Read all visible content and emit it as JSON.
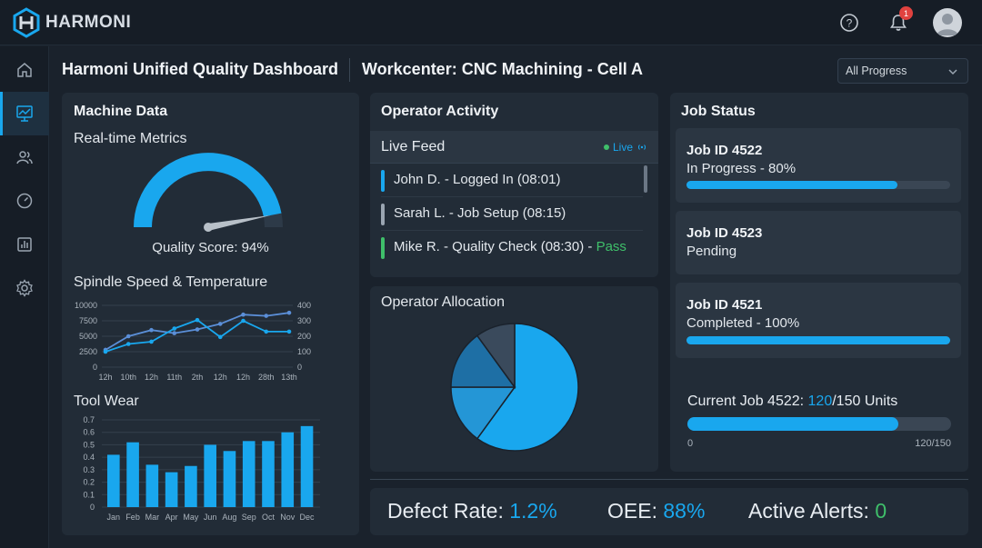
{
  "app": {
    "name": "HARMONI"
  },
  "topbar": {
    "notifications_count": "1"
  },
  "header": {
    "title": "Harmoni Unified Quality Dashboard",
    "workcenter": "Workcenter: CNC Machining - Cell A",
    "filter_value": "All Progress"
  },
  "sidebar": {
    "items": [
      "home-icon",
      "dashboard-icon",
      "users-icon",
      "gauge-icon",
      "reports-icon",
      "settings-icon"
    ],
    "active_index": 1
  },
  "machine": {
    "title": "Machine Data",
    "realtime_title": "Real-time Metrics",
    "quality_label": "Quality Score: 94%",
    "quality_value": 94,
    "spindle_title": "Spindle Speed & Temperature",
    "toolwear_title": "Tool Wear"
  },
  "operator": {
    "title": "Operator Activity",
    "feed_title": "Live Feed",
    "live_label": "Live",
    "feed": [
      {
        "text": "John D. - Logged In (08:01)",
        "suffix": "",
        "color": "#19a7ee"
      },
      {
        "text": "Sarah L. - Job Setup (08:15)",
        "suffix": "",
        "color": "#9aa5b1"
      },
      {
        "text": "Mike R. - Quality Check (08:30) - ",
        "suffix": "Pass",
        "color": "#3fbf6a"
      }
    ],
    "allocation_title": "Operator Allocation"
  },
  "jobs": {
    "title": "Job Status",
    "items": [
      {
        "id": "Job ID 4522",
        "status": "In Progress - 80%",
        "progress": 0.8
      },
      {
        "id": "Job ID 4523",
        "status": "Pending",
        "progress": null
      },
      {
        "id": "Job ID 4521",
        "status": "Completed - 100%",
        "progress": 1.0
      }
    ],
    "current_prefix": "Current Job 4522: ",
    "current_done": "120",
    "current_total": "/150 Units",
    "current_progress": 0.8,
    "axis_start": "0",
    "axis_end": "120/150"
  },
  "metrics": {
    "defect_label": "Defect Rate: ",
    "defect_value": "1.2%",
    "oee_label": "OEE: ",
    "oee_value": "88%",
    "alerts_label": "Active Alerts: ",
    "alerts_value": "0"
  },
  "colors": {
    "accent": "#19a7ee",
    "pass": "#3fbf6a",
    "alert_badge": "#e0423f"
  },
  "chart_data": [
    {
      "type": "line",
      "title": "Spindle Speed & Temperature",
      "categories": [
        "12h",
        "10th",
        "12h",
        "11th",
        "2th",
        "12h",
        "12h",
        "28th",
        "13th"
      ],
      "y_left_ticks": [
        "10000",
        "7500",
        "5000",
        "2500",
        "0"
      ],
      "y_right_ticks": [
        "400",
        "300",
        "200",
        "100",
        "0"
      ],
      "ylim_left": [
        0,
        10000
      ],
      "ylim_right": [
        0,
        400
      ],
      "series": [
        {
          "values": [
            2800,
            5000,
            6000,
            5500,
            6100,
            7000,
            8500,
            8300,
            8800
          ],
          "axis": "left",
          "color": "#5b8fd8"
        },
        {
          "values": [
            100,
            150,
            165,
            250,
            305,
            195,
            300,
            230,
            230
          ],
          "axis": "right",
          "color": "#19a7ee"
        }
      ],
      "grid": true
    },
    {
      "type": "bar",
      "title": "Tool Wear",
      "categories": [
        "Jan",
        "Feb",
        "Mar",
        "Apr",
        "May",
        "Jun",
        "Aug",
        "Sep",
        "Oct",
        "Nov",
        "Dec"
      ],
      "values": [
        0.42,
        0.52,
        0.34,
        0.28,
        0.33,
        0.5,
        0.45,
        0.53,
        0.53,
        0.6,
        0.65
      ],
      "y_ticks": [
        "0.7",
        "0.6",
        "0.5",
        "0.4",
        "0.3",
        "0.2",
        "0.1",
        "0"
      ],
      "ylim": [
        0,
        0.7
      ],
      "grid": true
    },
    {
      "type": "pie",
      "title": "Operator Allocation",
      "values": [
        60,
        15,
        15,
        10
      ],
      "colors": [
        "#19a7ee",
        "#2496d6",
        "#1e6fa5",
        "#3a4a5c"
      ]
    }
  ]
}
